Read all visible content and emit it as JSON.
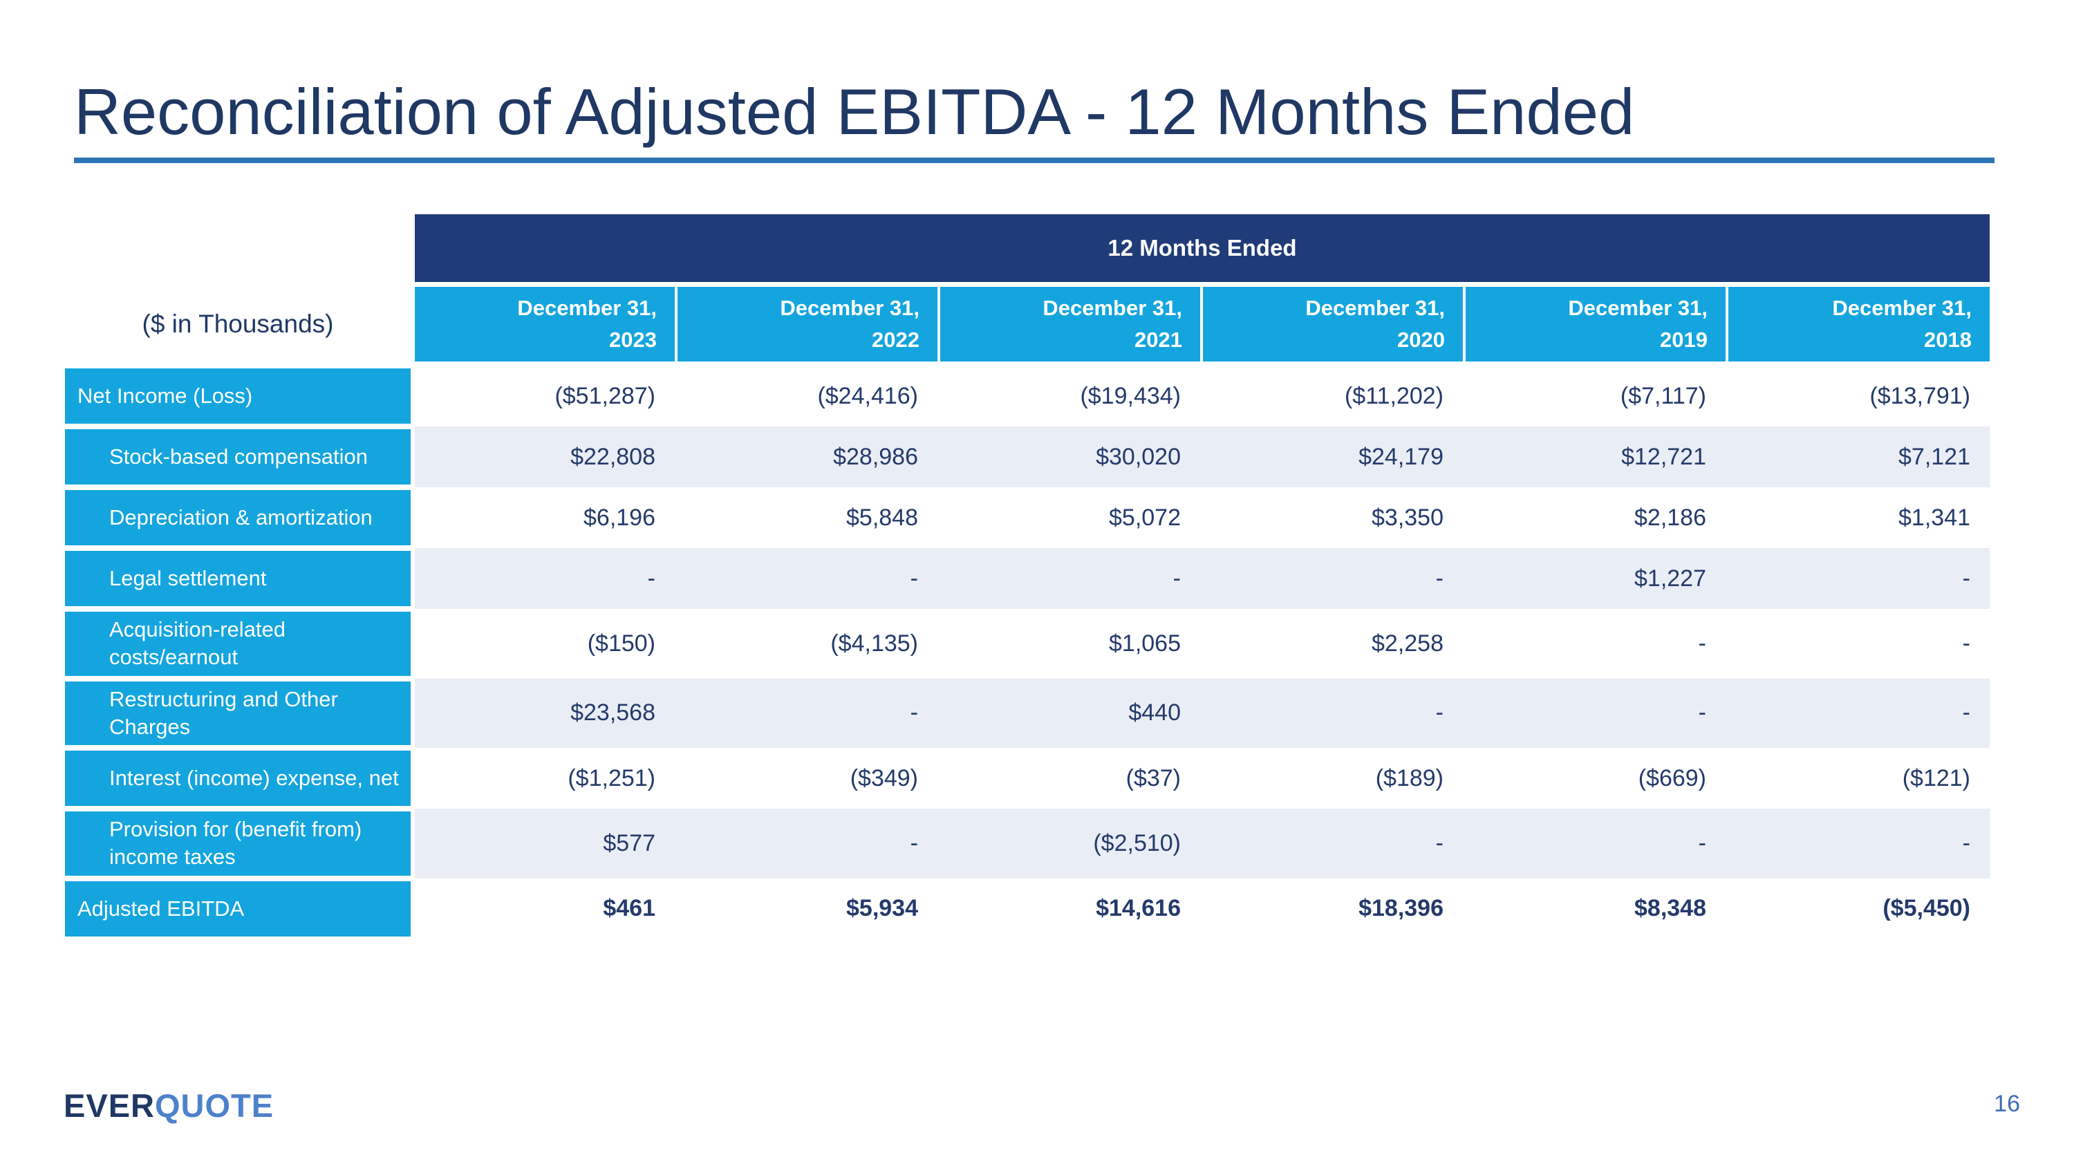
{
  "title": "Reconciliation of Adjusted EBITDA - 12 Months Ended",
  "page_number": "16",
  "logo": {
    "ever": "EVER",
    "quote": "QUOTE"
  },
  "colors": {
    "title_navy": "#1f3864",
    "rule_blue": "#2e75b6",
    "band_navy": "#1f3c78",
    "cell_cyan": "#14a5de",
    "stripe": "#e9edf5",
    "value_text": "#243a6b",
    "logo_quote_blue": "#4d82cb"
  },
  "table": {
    "group_header": "12 Months Ended",
    "units_label": "($ in Thousands)",
    "columns": [
      {
        "line1": "December 31,",
        "line2": "2023"
      },
      {
        "line1": "December 31,",
        "line2": "2022"
      },
      {
        "line1": "December 31,",
        "line2": "2021"
      },
      {
        "line1": "December 31,",
        "line2": "2020"
      },
      {
        "line1": "December 31,",
        "line2": "2019"
      },
      {
        "line1": "December 31,",
        "line2": "2018"
      }
    ],
    "rows": [
      {
        "label": "Net Income (Loss)",
        "indent": false,
        "bold": false,
        "values": [
          "($51,287)",
          "($24,416)",
          "($19,434)",
          "($11,202)",
          "($7,117)",
          "($13,791)"
        ]
      },
      {
        "label": "Stock-based compensation",
        "indent": true,
        "bold": false,
        "values": [
          "$22,808",
          "$28,986",
          "$30,020",
          "$24,179",
          "$12,721",
          "$7,121"
        ]
      },
      {
        "label": "Depreciation & amortization",
        "indent": true,
        "bold": false,
        "values": [
          "$6,196",
          "$5,848",
          "$5,072",
          "$3,350",
          "$2,186",
          "$1,341"
        ]
      },
      {
        "label": "Legal settlement",
        "indent": true,
        "bold": false,
        "values": [
          "-",
          "-",
          "-",
          "-",
          "$1,227",
          "-"
        ]
      },
      {
        "label": "Acquisition-related costs/earnout",
        "indent": true,
        "bold": false,
        "values": [
          "($150)",
          "($4,135)",
          "$1,065",
          "$2,258",
          "-",
          "-"
        ]
      },
      {
        "label": "Restructuring and Other Charges",
        "indent": true,
        "bold": false,
        "values": [
          "$23,568",
          "-",
          "$440",
          "-",
          "-",
          "-"
        ]
      },
      {
        "label": "Interest (income) expense, net",
        "indent": true,
        "bold": false,
        "values": [
          "($1,251)",
          "($349)",
          "($37)",
          "($189)",
          "($669)",
          "($121)"
        ]
      },
      {
        "label": "Provision for (benefit from) income taxes",
        "indent": true,
        "bold": false,
        "values": [
          "$577",
          "-",
          "($2,510)",
          "-",
          "-",
          "-"
        ]
      },
      {
        "label": "Adjusted EBITDA",
        "indent": false,
        "bold": true,
        "values": [
          "$461",
          "$5,934",
          "$14,616",
          "$18,396",
          "$8,348",
          "($5,450)"
        ]
      }
    ]
  }
}
